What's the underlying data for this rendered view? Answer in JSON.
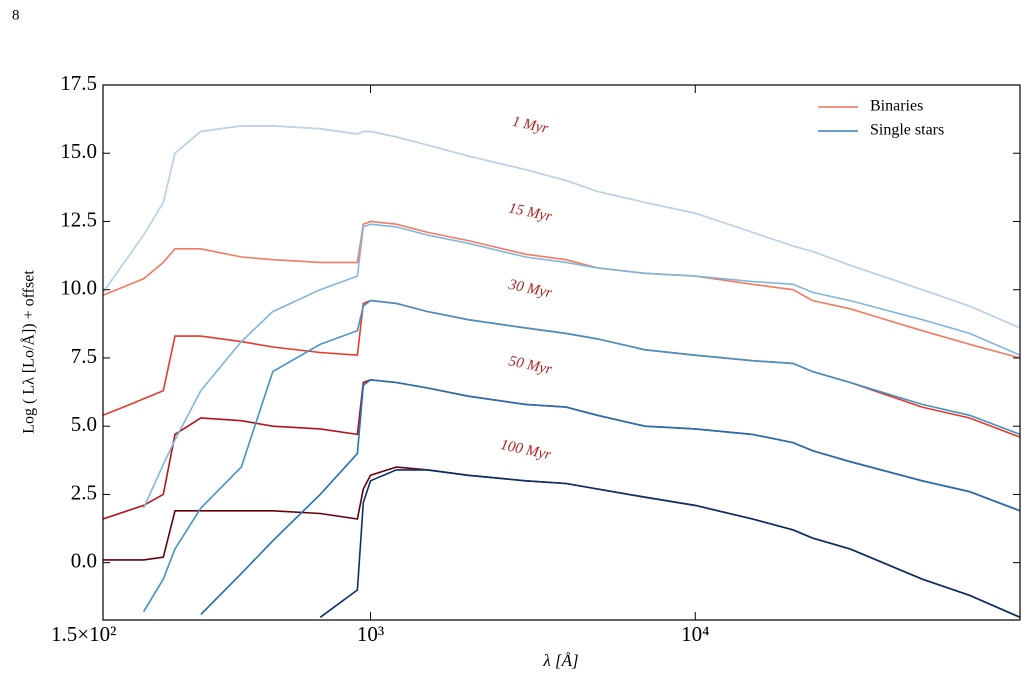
{
  "page_number": "8",
  "chart_data": {
    "type": "line",
    "xlabel": "λ [Å]",
    "ylabel": "Log ( Lλ [Lo/Å]) + offset",
    "log_x": true,
    "xlim": [
      150,
      100000
    ],
    "xticks": [
      {
        "value": 150,
        "label": "1.5×10²"
      },
      {
        "value": 1000,
        "label": "10³"
      },
      {
        "value": 10000,
        "label": "10⁴"
      }
    ],
    "ylim": [
      -2.1,
      17.5
    ],
    "yticks": [
      {
        "value": 0,
        "label": "0.0"
      },
      2.5,
      {
        "value": 5,
        "label": "5.0"
      },
      7.5,
      {
        "value": 10,
        "label": "10.0"
      },
      12.5,
      {
        "value": 15,
        "label": "15.0"
      },
      17.5
    ],
    "legend": "upper right",
    "x": [
      150,
      200,
      230,
      250,
      300,
      400,
      500,
      700,
      911,
      950,
      1000,
      1200,
      1500,
      2000,
      3000,
      4000,
      5000,
      7000,
      10000,
      15000,
      20000,
      23000,
      30000,
      50000,
      70000,
      100000
    ],
    "series": [
      {
        "name": "Binaries",
        "color": "#f4705a",
        "curves": [
          {
            "color": "#e9b7b7",
            "values": [
              9.9,
              12.0,
              13.2,
              15.0,
              15.8,
              16.0,
              16.0,
              15.9,
              15.7,
              15.8,
              15.8,
              15.6,
              15.3,
              14.9,
              14.4,
              14.0,
              13.6,
              13.2,
              12.8,
              12.1,
              11.6,
              11.4,
              10.9,
              10.0,
              9.4,
              8.6
            ]
          },
          {
            "color": "#f47a61",
            "values": [
              9.8,
              10.4,
              11.0,
              11.5,
              11.5,
              11.2,
              11.1,
              11.0,
              11.0,
              12.4,
              12.5,
              12.4,
              12.1,
              11.8,
              11.3,
              11.1,
              10.8,
              10.6,
              10.5,
              10.2,
              10.0,
              9.6,
              9.3,
              8.5,
              8.0,
              7.5
            ]
          },
          {
            "color": "#e8392a",
            "values": [
              5.4,
              6.0,
              6.3,
              8.3,
              8.3,
              8.1,
              7.9,
              7.7,
              7.6,
              9.5,
              9.6,
              9.5,
              9.2,
              8.9,
              8.6,
              8.4,
              8.2,
              7.8,
              7.6,
              7.4,
              7.3,
              7.0,
              6.6,
              5.7,
              5.3,
              4.6
            ]
          },
          {
            "color": "#b51218",
            "values": [
              1.6,
              2.1,
              2.5,
              4.7,
              5.3,
              5.2,
              5.0,
              4.9,
              4.7,
              6.6,
              6.7,
              6.6,
              6.4,
              6.1,
              5.8,
              5.7,
              5.4,
              5.0,
              4.9,
              4.7,
              4.4,
              4.1,
              3.7,
              3.0,
              2.6,
              1.9
            ]
          },
          {
            "color": "#67000d",
            "values": [
              0.1,
              0.1,
              0.2,
              1.9,
              1.9,
              1.9,
              1.9,
              1.8,
              1.6,
              2.7,
              3.2,
              3.5,
              3.4,
              3.2,
              3.0,
              2.9,
              2.7,
              2.4,
              2.1,
              1.6,
              1.2,
              0.9,
              0.5,
              -0.6,
              -1.2,
              -2.0
            ]
          }
        ]
      },
      {
        "name": "Single stars",
        "color": "#3a7db8",
        "curves": [
          {
            "color": "#b7d4ea",
            "values": [
              9.9,
              12.0,
              13.2,
              15.0,
              15.8,
              16.0,
              16.0,
              15.9,
              15.7,
              15.8,
              15.8,
              15.6,
              15.3,
              14.9,
              14.4,
              14.0,
              13.6,
              13.2,
              12.8,
              12.1,
              11.6,
              11.4,
              10.9,
              10.0,
              9.4,
              8.6
            ]
          },
          {
            "color": "#7fb6dc",
            "values": [
              null,
              2.0,
              3.6,
              4.5,
              6.3,
              8.1,
              9.2,
              10.0,
              10.5,
              12.3,
              12.4,
              12.3,
              12.0,
              11.7,
              11.2,
              11.0,
              10.8,
              10.6,
              10.5,
              10.3,
              10.2,
              9.9,
              9.6,
              8.9,
              8.4,
              7.6
            ]
          },
          {
            "color": "#4292c6",
            "values": [
              null,
              -1.8,
              -0.6,
              0.5,
              2.0,
              3.5,
              7.0,
              8.0,
              8.5,
              9.4,
              9.6,
              9.5,
              9.2,
              8.9,
              8.6,
              8.4,
              8.2,
              7.8,
              7.6,
              7.4,
              7.3,
              7.0,
              6.6,
              5.8,
              5.4,
              4.7
            ]
          },
          {
            "color": "#2171b5",
            "values": [
              null,
              null,
              null,
              null,
              -1.9,
              -0.4,
              0.8,
              2.5,
              4.0,
              6.5,
              6.7,
              6.6,
              6.4,
              6.1,
              5.8,
              5.7,
              5.4,
              5.0,
              4.9,
              4.7,
              4.4,
              4.1,
              3.7,
              3.0,
              2.6,
              1.9
            ]
          },
          {
            "color": "#08306b",
            "values": [
              null,
              null,
              null,
              null,
              null,
              null,
              null,
              -2.0,
              -1.0,
              2.2,
              3.0,
              3.4,
              3.4,
              3.2,
              3.0,
              2.9,
              2.7,
              2.4,
              2.1,
              1.6,
              1.2,
              0.9,
              0.5,
              -0.6,
              -1.2,
              -2.0
            ]
          }
        ]
      }
    ],
    "annotations": [
      {
        "text": "1 Myr",
        "x": 3100,
        "y": 16.0
      },
      {
        "text": "15 Myr",
        "x": 3100,
        "y": 12.8
      },
      {
        "text": "30 Myr",
        "x": 3100,
        "y": 10.0
      },
      {
        "text": "50 Myr",
        "x": 3100,
        "y": 7.2
      },
      {
        "text": "100 Myr",
        "x": 3000,
        "y": 4.1
      }
    ]
  }
}
